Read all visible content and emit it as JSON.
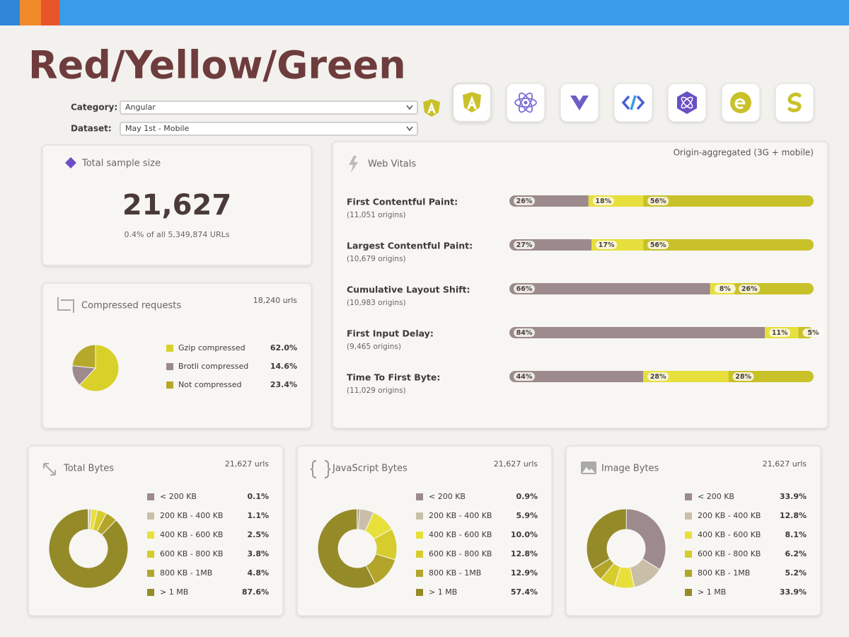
{
  "header": {
    "title": "Red/Yellow/Green"
  },
  "filters": {
    "category": {
      "label": "Category:",
      "value": "Angular"
    },
    "dataset": {
      "label": "Dataset:",
      "value": "May 1st - Mobile"
    }
  },
  "sample": {
    "title": "Total sample size",
    "value": "21,627",
    "note": "0.4% of all 5,349,874 URLs"
  },
  "web_vitals": {
    "title": "Web Vitals",
    "note": "Origin-aggregated (3G + mobile)",
    "colors": [
      "#9c8a8c",
      "#e6df3c",
      "#c9c12a"
    ],
    "metrics": [
      {
        "name": "First Contentful Paint:",
        "origins": "(11,051 origins)",
        "values": [
          26,
          18,
          56
        ],
        "value_labels": [
          "26%",
          "18%",
          "56%"
        ]
      },
      {
        "name": "Largest Contentful Paint:",
        "origins": "(10,679 origins)",
        "values": [
          27,
          17,
          56
        ],
        "value_labels": [
          "27%",
          "17%",
          "56%"
        ]
      },
      {
        "name": "Cumulative Layout Shift:",
        "origins": "(10,983 origins)",
        "values": [
          66,
          8,
          26
        ],
        "value_labels": [
          "66%",
          "8%",
          "26%"
        ]
      },
      {
        "name": "First Input Delay:",
        "origins": "(9,465 origins)",
        "values": [
          84,
          11,
          5
        ],
        "value_labels": [
          "84%",
          "11%",
          "5%"
        ]
      },
      {
        "name": "Time To First Byte:",
        "origins": "(11,029 origins)",
        "values": [
          44,
          28,
          28
        ],
        "value_labels": [
          "44%",
          "28%",
          "28%"
        ]
      }
    ]
  },
  "compressed": {
    "type": "pie",
    "title": "Compressed requests",
    "count": "18,240 urls",
    "categories": [
      "Gzip compressed",
      "Brotli compressed",
      "Not compressed"
    ],
    "colors": [
      "#d9d02a",
      "#9c8a8c",
      "#b5a82a"
    ],
    "values": [
      62.0,
      14.6,
      23.4
    ],
    "value_labels": [
      "62.0%",
      "14.6%",
      "23.4%"
    ]
  },
  "bytes_colors": [
    "#9c8a8c",
    "#c9bfa8",
    "#e8e03a",
    "#d6cc2e",
    "#b3a52a",
    "#958a28"
  ],
  "bytes": [
    {
      "type": "donut",
      "title": "Total Bytes",
      "count": "21,627 urls",
      "categories": [
        "< 200 KB",
        "200 KB - 400 KB",
        "400 KB - 600 KB",
        "600 KB - 800 KB",
        "800 KB - 1MB",
        "> 1 MB"
      ],
      "values": [
        0.1,
        1.1,
        2.5,
        3.8,
        4.8,
        87.6
      ],
      "value_labels": [
        "0.1%",
        "1.1%",
        "2.5%",
        "3.8%",
        "4.8%",
        "87.6%"
      ]
    },
    {
      "type": "donut",
      "title": "JavaScript Bytes",
      "count": "21,627 urls",
      "categories": [
        "< 200 KB",
        "200 KB - 400 KB",
        "400 KB - 600 KB",
        "600 KB - 800 KB",
        "800 KB - 1MB",
        "> 1 MB"
      ],
      "values": [
        0.9,
        5.9,
        10.0,
        12.8,
        12.9,
        57.4
      ],
      "value_labels": [
        "0.9%",
        "5.9%",
        "10.0%",
        "12.8%",
        "12.9%",
        "57.4%"
      ]
    },
    {
      "type": "donut",
      "title": "Image Bytes",
      "count": "21,627 urls",
      "categories": [
        "< 200 KB",
        "200 KB - 400 KB",
        "400 KB - 600 KB",
        "600 KB - 800 KB",
        "800 KB - 1MB",
        "> 1 MB"
      ],
      "values": [
        33.9,
        12.8,
        8.1,
        6.2,
        5.2,
        33.9
      ],
      "value_labels": [
        "33.9%",
        "12.8%",
        "8.1%",
        "6.2%",
        "5.2%",
        "33.9%"
      ]
    }
  ]
}
